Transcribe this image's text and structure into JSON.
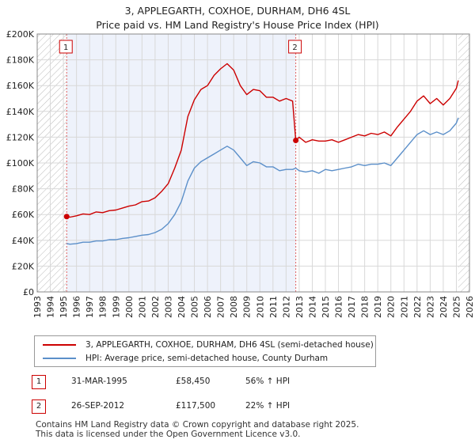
{
  "title_line1": "3, APPLEGARTH, COXHOE, DURHAM, DH6 4SL",
  "title_line2": "Price paid vs. HM Land Registry's House Price Index (HPI)",
  "chart_data": {
    "type": "line",
    "xlim": [
      1993,
      2026
    ],
    "ylim": [
      0,
      200000
    ],
    "y_ticks": [
      0,
      20000,
      40000,
      60000,
      80000,
      100000,
      120000,
      140000,
      160000,
      180000,
      200000
    ],
    "y_tick_labels": [
      "£0",
      "£20K",
      "£40K",
      "£60K",
      "£80K",
      "£100K",
      "£120K",
      "£140K",
      "£160K",
      "£180K",
      "£200K"
    ],
    "x_ticks": [
      1993,
      1994,
      1995,
      1996,
      1997,
      1998,
      1999,
      2000,
      2001,
      2002,
      2003,
      2004,
      2005,
      2006,
      2007,
      2008,
      2009,
      2010,
      2011,
      2012,
      2013,
      2014,
      2015,
      2016,
      2017,
      2018,
      2019,
      2020,
      2021,
      2022,
      2023,
      2024,
      2025,
      2026
    ],
    "x_tick_labels": [
      "1993",
      "1994",
      "1995",
      "1996",
      "1997",
      "1998",
      "1999",
      "2000",
      "2001",
      "2002",
      "2003",
      "2004",
      "2005",
      "2006",
      "2007",
      "2008",
      "2009",
      "2010",
      "2011",
      "2012",
      "2013",
      "2014",
      "2015",
      "2016",
      "2017",
      "2018",
      "2019",
      "2020",
      "2021",
      "2022",
      "2023",
      "2024",
      "2025",
      "2026"
    ],
    "hatched_ranges": [
      [
        1993,
        1995.25
      ],
      [
        2025.15,
        2026
      ]
    ],
    "shaded_range": [
      1995.25,
      2012.74
    ],
    "series": [
      {
        "name": "3, APPLEGARTH, COXHOE, DURHAM, DH6 4SL (semi-detached house)",
        "color": "#cc0000",
        "x": [
          1995.25,
          1995.5,
          1996,
          1996.5,
          1997,
          1997.5,
          1998,
          1998.5,
          1999,
          1999.5,
          2000,
          2000.5,
          2001,
          2001.5,
          2002,
          2002.5,
          2003,
          2003.5,
          2004,
          2004.5,
          2005,
          2005.5,
          2006,
          2006.5,
          2007,
          2007.5,
          2008,
          2008.5,
          2009,
          2009.5,
          2010,
          2010.5,
          2011,
          2011.5,
          2012,
          2012.5,
          2012.74,
          2013,
          2013.5,
          2014,
          2014.5,
          2015,
          2015.5,
          2016,
          2016.5,
          2017,
          2017.5,
          2018,
          2018.5,
          2019,
          2019.5,
          2020,
          2020.5,
          2021,
          2021.5,
          2022,
          2022.5,
          2023,
          2023.5,
          2024,
          2024.5,
          2025,
          2025.15
        ],
        "y": [
          58450,
          58000,
          59000,
          60500,
          60000,
          62000,
          61500,
          63000,
          63500,
          65000,
          66500,
          67500,
          70000,
          70500,
          73000,
          78000,
          84000,
          96000,
          110000,
          136000,
          149000,
          157000,
          160000,
          168000,
          173000,
          177000,
          172000,
          160000,
          153000,
          157000,
          156000,
          151000,
          151000,
          148000,
          150000,
          148000,
          117500,
          120000,
          116000,
          118000,
          117000,
          117000,
          118000,
          116000,
          118000,
          120000,
          122000,
          121000,
          123000,
          122000,
          124000,
          121000,
          128000,
          134000,
          140000,
          148000,
          152000,
          146000,
          150000,
          145000,
          150000,
          158000,
          164000
        ]
      },
      {
        "name": "HPI: Average price, semi-detached house, County Durham",
        "color": "#5b8fc9",
        "x": [
          1995.25,
          1995.5,
          1996,
          1996.5,
          1997,
          1997.5,
          1998,
          1998.5,
          1999,
          1999.5,
          2000,
          2000.5,
          2001,
          2001.5,
          2002,
          2002.5,
          2003,
          2003.5,
          2004,
          2004.5,
          2005,
          2005.5,
          2006,
          2006.5,
          2007,
          2007.5,
          2008,
          2008.5,
          2009,
          2009.5,
          2010,
          2010.5,
          2011,
          2011.5,
          2012,
          2012.5,
          2012.74,
          2013,
          2013.5,
          2014,
          2014.5,
          2015,
          2015.5,
          2016,
          2016.5,
          2017,
          2017.5,
          2018,
          2018.5,
          2019,
          2019.5,
          2020,
          2020.5,
          2021,
          2021.5,
          2022,
          2022.5,
          2023,
          2023.5,
          2024,
          2024.5,
          2025,
          2025.15
        ],
        "y": [
          37500,
          37000,
          37500,
          38500,
          38500,
          39500,
          39500,
          40500,
          40500,
          41500,
          42000,
          43000,
          44000,
          44500,
          46000,
          48500,
          53000,
          60000,
          70000,
          86000,
          96000,
          101000,
          104000,
          107000,
          110000,
          113000,
          110000,
          104000,
          98000,
          101000,
          100000,
          97000,
          97000,
          94000,
          95000,
          95000,
          96000,
          94000,
          93000,
          94000,
          92000,
          95000,
          94000,
          95000,
          96000,
          97000,
          99000,
          98000,
          99000,
          99000,
          100000,
          98000,
          104000,
          110000,
          116000,
          122000,
          125000,
          122000,
          124000,
          122000,
          125000,
          131000,
          135000
        ]
      }
    ],
    "sales": [
      {
        "label": "1",
        "x": 1995.25,
        "y": 58450
      },
      {
        "label": "2",
        "x": 2012.74,
        "y": 117500
      }
    ]
  },
  "legend": [
    {
      "label": "3, APPLEGARTH, COXHOE, DURHAM, DH6 4SL (semi-detached house)",
      "color": "#cc0000"
    },
    {
      "label": "HPI: Average price, semi-detached house, County Durham",
      "color": "#5b8fc9"
    }
  ],
  "sales_table": [
    {
      "num": "1",
      "date": "31-MAR-1995",
      "price": "£58,450",
      "hpi": "56% ↑ HPI"
    },
    {
      "num": "2",
      "date": "26-SEP-2012",
      "price": "£117,500",
      "hpi": "22% ↑ HPI"
    }
  ],
  "footer_line1": "Contains HM Land Registry data © Crown copyright and database right 2025.",
  "footer_line2": "This data is licensed under the Open Government Licence v3.0."
}
